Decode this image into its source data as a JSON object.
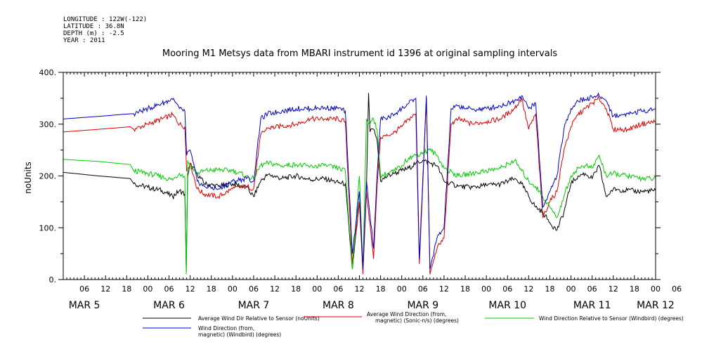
{
  "header": {
    "meta_lines": [
      "LONGITUDE : 122W(-122)",
      "LATITUDE : 36.8N",
      "DEPTH (m) : -2.5",
      "YEAR : 2011"
    ],
    "title": "Mooring M1 Metsys data from MBARI instrument id 1396 at original sampling intervals"
  },
  "chart_data": {
    "type": "line",
    "title": "Mooring M1 Metsys data from MBARI instrument id 1396 at original sampling intervals",
    "ylabel": "noUnits",
    "xlabel": "",
    "ylim": [
      0,
      400
    ],
    "yticks": [
      0,
      100,
      200,
      300,
      400
    ],
    "ytick_labels": [
      "0.",
      "100.",
      "200.",
      "300.",
      "400."
    ],
    "xlim_hours": [
      0,
      168
    ],
    "xtick_labels": [
      "06",
      "12",
      "18",
      "00",
      "06",
      "12",
      "18",
      "00",
      "06",
      "12",
      "18",
      "00",
      "06",
      "12",
      "18",
      "00",
      "06",
      "12",
      "18",
      "00",
      "06",
      "12",
      "18",
      "00",
      "06",
      "12",
      "18",
      "00",
      "06"
    ],
    "day_labels": [
      {
        "text": "MAR 5",
        "hour": 6
      },
      {
        "text": "MAR 6",
        "hour": 30
      },
      {
        "text": "MAR 7",
        "hour": 54
      },
      {
        "text": "MAR 8",
        "hour": 78
      },
      {
        "text": "MAR 9",
        "hour": 102
      },
      {
        "text": "MAR 10",
        "hour": 126
      },
      {
        "text": "MAR 11",
        "hour": 150
      },
      {
        "text": "MAR 12",
        "hour": 168
      }
    ],
    "series": [
      {
        "name": "Average Wind Dir Relative to Sensor (noUnits)",
        "color": "#000000",
        "points": [
          [
            0,
            207
          ],
          [
            10,
            200
          ],
          [
            19,
            195
          ],
          [
            20,
            185
          ],
          [
            24,
            178
          ],
          [
            28,
            172
          ],
          [
            31,
            160
          ],
          [
            33,
            172
          ],
          [
            34.5,
            165
          ],
          [
            34.9,
            15
          ],
          [
            35.3,
            200
          ],
          [
            36,
            222
          ],
          [
            38,
            205
          ],
          [
            40,
            185
          ],
          [
            44,
            180
          ],
          [
            48,
            185
          ],
          [
            52,
            178
          ],
          [
            54,
            160
          ],
          [
            56,
            190
          ],
          [
            58,
            203
          ],
          [
            62,
            195
          ],
          [
            66,
            200
          ],
          [
            70,
            193
          ],
          [
            74,
            195
          ],
          [
            78,
            187
          ],
          [
            80,
            185
          ],
          [
            82,
            20
          ],
          [
            84,
            150
          ],
          [
            85,
            20
          ],
          [
            86,
            175
          ],
          [
            86.6,
            360
          ],
          [
            87,
            285
          ],
          [
            88,
            290
          ],
          [
            89,
            270
          ],
          [
            90,
            190
          ],
          [
            92,
            200
          ],
          [
            94,
            205
          ],
          [
            96,
            210
          ],
          [
            98,
            215
          ],
          [
            100,
            225
          ],
          [
            102,
            230
          ],
          [
            104,
            225
          ],
          [
            106,
            220
          ],
          [
            108,
            190
          ],
          [
            112,
            180
          ],
          [
            116,
            178
          ],
          [
            120,
            182
          ],
          [
            124,
            184
          ],
          [
            128,
            195
          ],
          [
            130,
            185
          ],
          [
            132,
            160
          ],
          [
            134,
            140
          ],
          [
            136,
            130
          ],
          [
            138,
            110
          ],
          [
            140,
            95
          ],
          [
            142,
            130
          ],
          [
            144,
            185
          ],
          [
            146,
            200
          ],
          [
            148,
            205
          ],
          [
            150,
            195
          ],
          [
            152,
            220
          ],
          [
            154,
            160
          ],
          [
            156,
            175
          ],
          [
            160,
            172
          ],
          [
            164,
            170
          ],
          [
            168,
            172
          ]
        ]
      },
      {
        "name": "Average Wind Direction (from, magnetic) (Sonic-n/s) (degrees)",
        "color": "#dd0000",
        "points": [
          [
            0,
            285
          ],
          [
            10,
            290
          ],
          [
            19,
            295
          ],
          [
            20,
            290
          ],
          [
            24,
            300
          ],
          [
            28,
            310
          ],
          [
            31,
            318
          ],
          [
            33,
            300
          ],
          [
            34.5,
            295
          ],
          [
            35,
            210
          ],
          [
            36,
            225
          ],
          [
            38,
            175
          ],
          [
            40,
            165
          ],
          [
            44,
            160
          ],
          [
            48,
            175
          ],
          [
            52,
            180
          ],
          [
            54,
            175
          ],
          [
            56,
            280
          ],
          [
            58,
            292
          ],
          [
            62,
            296
          ],
          [
            66,
            300
          ],
          [
            70,
            310
          ],
          [
            74,
            310
          ],
          [
            78,
            310
          ],
          [
            80,
            305
          ],
          [
            82,
            30
          ],
          [
            84,
            150
          ],
          [
            85,
            10
          ],
          [
            86,
            170
          ],
          [
            88,
            40
          ],
          [
            89,
            180
          ],
          [
            90,
            275
          ],
          [
            92,
            278
          ],
          [
            94,
            285
          ],
          [
            96,
            295
          ],
          [
            98,
            310
          ],
          [
            100,
            320
          ],
          [
            101,
            30
          ],
          [
            103,
            350
          ],
          [
            104,
            10
          ],
          [
            106,
            60
          ],
          [
            108,
            80
          ],
          [
            110,
            300
          ],
          [
            112,
            310
          ],
          [
            116,
            300
          ],
          [
            120,
            305
          ],
          [
            124,
            310
          ],
          [
            128,
            330
          ],
          [
            130,
            350
          ],
          [
            132,
            290
          ],
          [
            134,
            320
          ],
          [
            136,
            120
          ],
          [
            138,
            150
          ],
          [
            140,
            170
          ],
          [
            142,
            250
          ],
          [
            144,
            295
          ],
          [
            146,
            318
          ],
          [
            148,
            330
          ],
          [
            150,
            340
          ],
          [
            152,
            350
          ],
          [
            154,
            330
          ],
          [
            156,
            290
          ],
          [
            160,
            290
          ],
          [
            164,
            300
          ],
          [
            168,
            305
          ]
        ]
      },
      {
        "name": "Wind Direction Relative to Sensor (Windbird) (degrees)",
        "color": "#00cc00",
        "points": [
          [
            0,
            232
          ],
          [
            10,
            228
          ],
          [
            19,
            222
          ],
          [
            20,
            210
          ],
          [
            24,
            205
          ],
          [
            28,
            198
          ],
          [
            31,
            192
          ],
          [
            33,
            205
          ],
          [
            34.5,
            198
          ],
          [
            34.9,
            10
          ],
          [
            35.3,
            230
          ],
          [
            36,
            220
          ],
          [
            38,
            205
          ],
          [
            40,
            210
          ],
          [
            44,
            212
          ],
          [
            48,
            210
          ],
          [
            52,
            200
          ],
          [
            54,
            195
          ],
          [
            56,
            220
          ],
          [
            58,
            225
          ],
          [
            62,
            220
          ],
          [
            66,
            222
          ],
          [
            70,
            218
          ],
          [
            74,
            220
          ],
          [
            78,
            215
          ],
          [
            80,
            210
          ],
          [
            82,
            20
          ],
          [
            84,
            200
          ],
          [
            85,
            20
          ],
          [
            86,
            310
          ],
          [
            87,
            300
          ],
          [
            88,
            310
          ],
          [
            89,
            290
          ],
          [
            90,
            200
          ],
          [
            92,
            205
          ],
          [
            94,
            210
          ],
          [
            96,
            220
          ],
          [
            98,
            235
          ],
          [
            100,
            240
          ],
          [
            102,
            245
          ],
          [
            104,
            250
          ],
          [
            106,
            240
          ],
          [
            108,
            215
          ],
          [
            112,
            200
          ],
          [
            116,
            205
          ],
          [
            120,
            210
          ],
          [
            124,
            215
          ],
          [
            128,
            230
          ],
          [
            130,
            210
          ],
          [
            132,
            190
          ],
          [
            134,
            180
          ],
          [
            136,
            160
          ],
          [
            138,
            140
          ],
          [
            140,
            120
          ],
          [
            142,
            160
          ],
          [
            144,
            200
          ],
          [
            146,
            215
          ],
          [
            148,
            220
          ],
          [
            150,
            215
          ],
          [
            152,
            240
          ],
          [
            154,
            200
          ],
          [
            156,
            205
          ],
          [
            160,
            200
          ],
          [
            164,
            195
          ],
          [
            168,
            195
          ]
        ]
      },
      {
        "name": "Wind Direction (from, magnetic) (Windbird) (degrees)",
        "color": "#0000cc",
        "points": [
          [
            0,
            310
          ],
          [
            10,
            315
          ],
          [
            19,
            320
          ],
          [
            20,
            320
          ],
          [
            24,
            330
          ],
          [
            28,
            340
          ],
          [
            31,
            348
          ],
          [
            33,
            330
          ],
          [
            34.5,
            325
          ],
          [
            35,
            240
          ],
          [
            36,
            250
          ],
          [
            38,
            190
          ],
          [
            40,
            180
          ],
          [
            44,
            175
          ],
          [
            48,
            190
          ],
          [
            52,
            195
          ],
          [
            54,
            190
          ],
          [
            56,
            310
          ],
          [
            58,
            320
          ],
          [
            62,
            325
          ],
          [
            66,
            330
          ],
          [
            70,
            330
          ],
          [
            74,
            332
          ],
          [
            78,
            330
          ],
          [
            80,
            325
          ],
          [
            82,
            50
          ],
          [
            84,
            170
          ],
          [
            85,
            20
          ],
          [
            86,
            190
          ],
          [
            88,
            60
          ],
          [
            89,
            200
          ],
          [
            90,
            310
          ],
          [
            92,
            312
          ],
          [
            94,
            320
          ],
          [
            96,
            330
          ],
          [
            98,
            340
          ],
          [
            100,
            350
          ],
          [
            101,
            40
          ],
          [
            103,
            355
          ],
          [
            104,
            20
          ],
          [
            106,
            80
          ],
          [
            108,
            100
          ],
          [
            110,
            330
          ],
          [
            112,
            335
          ],
          [
            116,
            328
          ],
          [
            120,
            330
          ],
          [
            124,
            335
          ],
          [
            128,
            345
          ],
          [
            130,
            355
          ],
          [
            132,
            330
          ],
          [
            134,
            340
          ],
          [
            136,
            140
          ],
          [
            138,
            170
          ],
          [
            140,
            200
          ],
          [
            142,
            290
          ],
          [
            144,
            330
          ],
          [
            146,
            345
          ],
          [
            148,
            348
          ],
          [
            150,
            352
          ],
          [
            152,
            355
          ],
          [
            154,
            345
          ],
          [
            156,
            315
          ],
          [
            160,
            320
          ],
          [
            164,
            325
          ],
          [
            168,
            330
          ]
        ]
      }
    ],
    "legend": [
      {
        "lines": [
          "Average Wind Dir Relative to Sensor (noUnits)"
        ],
        "color": "#000000"
      },
      {
        "lines": [
          "Average Wind Direction (from,",
          "magnetic) (Sonic-n/s) (degrees)"
        ],
        "color": "#dd0000"
      },
      {
        "lines": [
          "Wind Direction Relative to Sensor (Windbird) (degrees)"
        ],
        "color": "#00cc00"
      },
      {
        "lines": [
          "Wind Direction (from,",
          "magnetic) (Windbird) (degrees)"
        ],
        "color": "#0000cc"
      }
    ],
    "grid": false,
    "legend_placement": "bottom"
  }
}
